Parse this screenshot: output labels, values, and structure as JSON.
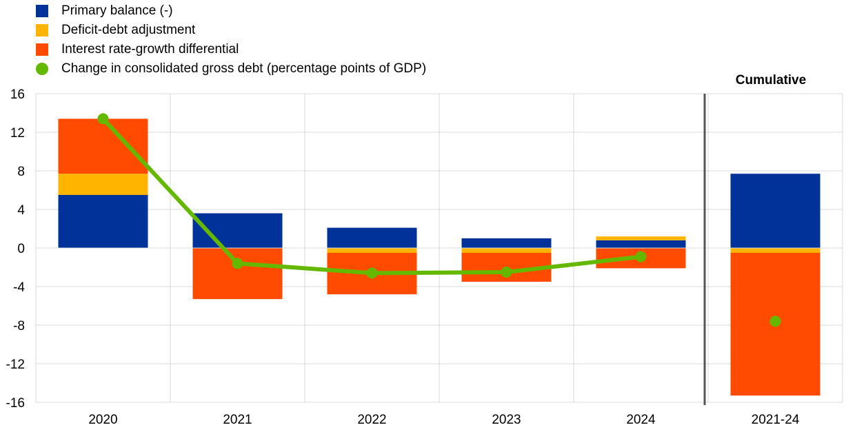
{
  "chart_data": {
    "type": "bar",
    "stacked": true,
    "categories": [
      "2020",
      "2021",
      "2022",
      "2023",
      "2024",
      "2021-24"
    ],
    "ylim": [
      -16,
      16
    ],
    "yticks": [
      16,
      12,
      8,
      4,
      0,
      -4,
      -8,
      -12,
      -16
    ],
    "grid": true,
    "legend_position": "top-left",
    "annotation": "Cumulative",
    "series": [
      {
        "name": "Primary balance (-)",
        "kind": "bar",
        "color": "#003299",
        "values": [
          5.5,
          3.6,
          2.1,
          1.0,
          0.8,
          7.7
        ]
      },
      {
        "name": "Deficit-debt adjustment",
        "kind": "bar",
        "color": "#FFB400",
        "values": [
          2.2,
          0.0,
          -0.5,
          -0.5,
          0.4,
          -0.5
        ]
      },
      {
        "name": "Interest rate-growth differential",
        "kind": "bar",
        "color": "#FF4B00",
        "values": [
          5.7,
          -5.3,
          -4.3,
          -3.0,
          -2.1,
          -14.8
        ]
      },
      {
        "name": "Change in consolidated gross debt (percentage points of GDP)",
        "kind": "marker",
        "color": "#65B800",
        "values": [
          13.4,
          -1.6,
          -2.6,
          -2.5,
          -0.9,
          -7.6
        ]
      }
    ]
  }
}
